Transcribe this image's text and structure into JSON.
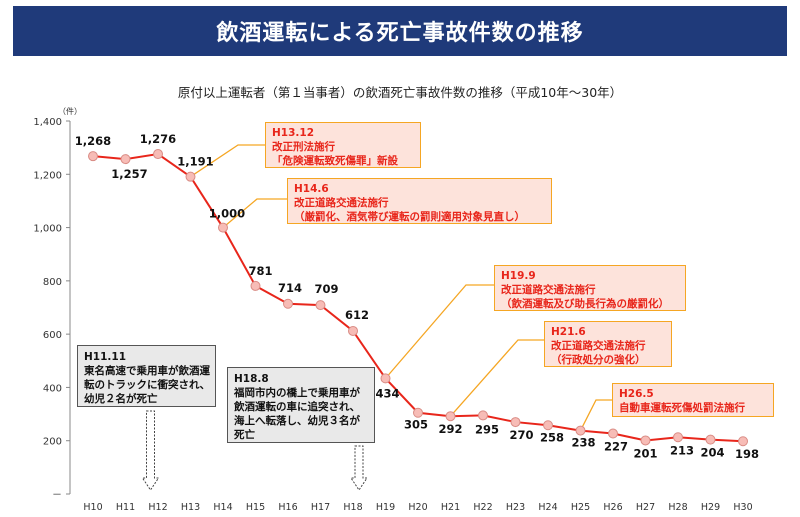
{
  "banner": {
    "title": "飲酒運転による死亡事故件数の推移"
  },
  "subtitle": "原付以上運転者（第１当事者）の飲酒死亡事故件数の推移（平成10年～30年）",
  "callouts": [
    {
      "text": "H13.12\n改正刑法施行\n「危険運転致死傷罪」新設"
    },
    {
      "text": "H14.6\n改正道路交通法施行\n（厳罰化、酒気帯び運転の罰則適用対象見直し）"
    },
    {
      "text": "H19.9\n改正道路交通法施行\n（飲酒運転及び助長行為の厳罰化）"
    },
    {
      "text": "H21.6\n改正道路交通法施行\n（行政処分の強化）"
    },
    {
      "text": "H26.5\n自動車運転死傷処罰法施行"
    }
  ],
  "events": [
    {
      "text": "H11.11\n東名高速で乗用車が飲酒運\n転のトラックに衝突され、\n幼児２名が死亡"
    },
    {
      "text": "H18.8\n福岡市内の橋上で乗用車が\n飲酒運転の車に追突され、\n海上へ転落し、幼児３名が\n死亡"
    }
  ],
  "colors": {
    "line": "#e8261b",
    "marker": "#f7bcb6",
    "banner": "#1f3a7a",
    "callout_border": "#f5a623",
    "callout_fill": "#fde3db"
  },
  "chart_data": {
    "type": "line",
    "title": "原付以上運転者（第１当事者）の飲酒死亡事故件数の推移（平成10年～30年）",
    "yunit": "（件）",
    "ylim": [
      0,
      1400
    ],
    "yticks": [
      {
        "value": 0,
        "label": "－"
      },
      {
        "value": 200,
        "label": "200"
      },
      {
        "value": 400,
        "label": "400"
      },
      {
        "value": 600,
        "label": "600"
      },
      {
        "value": 800,
        "label": "800"
      },
      {
        "value": 1000,
        "label": "1,000"
      },
      {
        "value": 1200,
        "label": "1,200"
      },
      {
        "value": 1400,
        "label": "1,400"
      }
    ],
    "categories": [
      "H10",
      "H11",
      "H12",
      "H13",
      "H14",
      "H15",
      "H16",
      "H17",
      "H18",
      "H19",
      "H20",
      "H21",
      "H22",
      "H23",
      "H24",
      "H25",
      "H26",
      "H27",
      "H28",
      "H29",
      "H30"
    ],
    "values": [
      1268,
      1257,
      1276,
      1191,
      1000,
      781,
      714,
      709,
      612,
      434,
      305,
      292,
      295,
      270,
      258,
      238,
      227,
      201,
      213,
      204,
      198
    ],
    "value_labels": [
      "1,268",
      "1,257",
      "1,276",
      "1,191",
      "1,000",
      "781",
      "714",
      "709",
      "612",
      "434",
      "305",
      "292",
      "295",
      "270",
      "258",
      "238",
      "227",
      "201",
      "213",
      "204",
      "198"
    ],
    "grid": false,
    "legend": "none"
  }
}
